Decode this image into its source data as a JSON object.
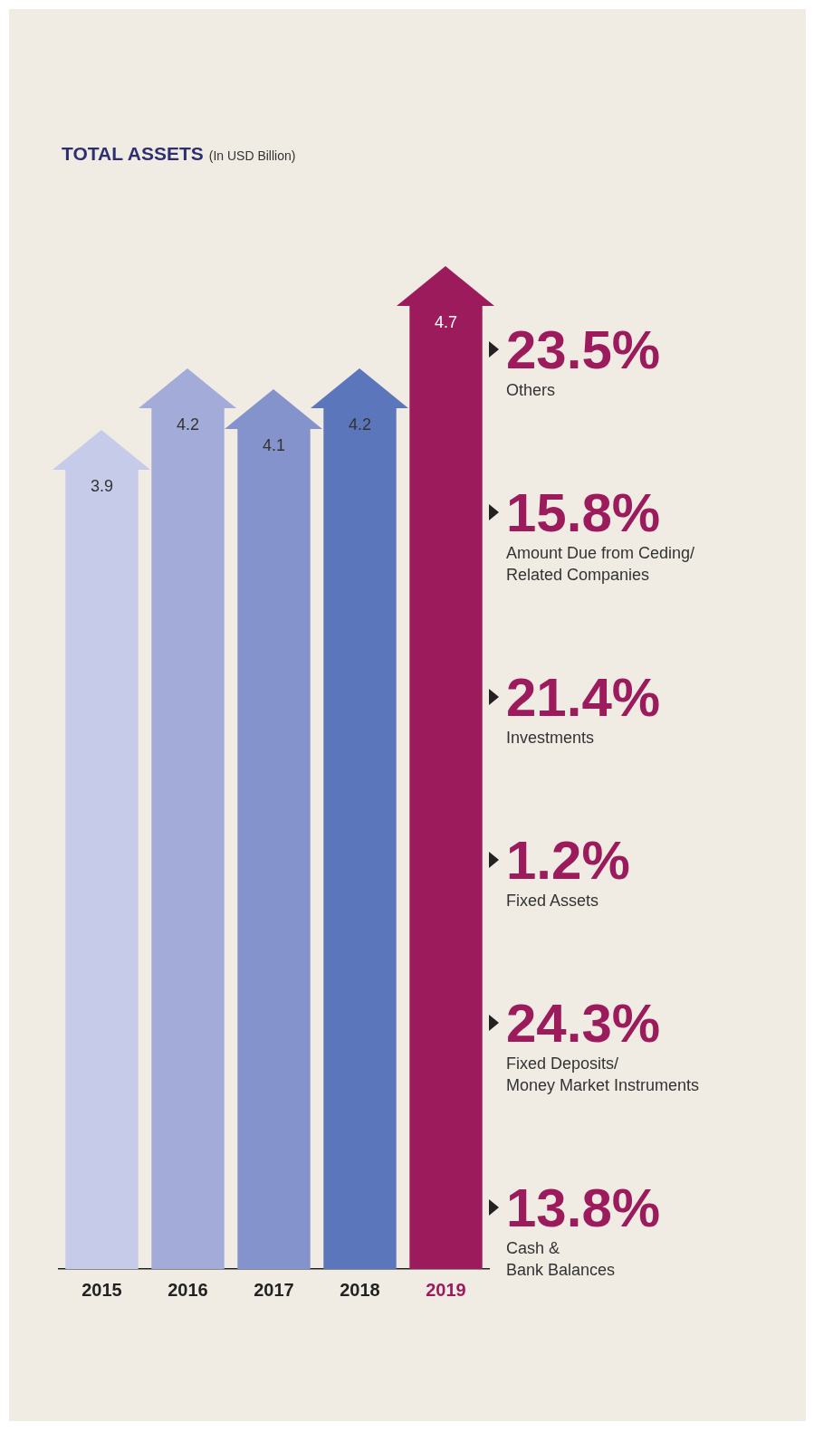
{
  "chart_data": {
    "type": "bar",
    "title": "TOTAL ASSETS",
    "subtitle": "(In USD Billion)",
    "categories": [
      "2015",
      "2016",
      "2017",
      "2018",
      "2019"
    ],
    "values": [
      3.9,
      4.2,
      4.1,
      4.2,
      4.7
    ],
    "colors": [
      "#c5cbe8",
      "#a3acd9",
      "#8593cc",
      "#5b76bb",
      "#9c1b5c"
    ],
    "data_labels": true,
    "legend": false,
    "annotations": [
      "23.5%",
      "Others",
      "15.8%",
      "Amount Due from Ceding/\nRelated Companies",
      "21.4%",
      "Investments",
      "1.2%",
      "Fixed Assets",
      "24.3%",
      "Fixed Deposits/\nMoney Market Instruments",
      "13.8%",
      "Cash &\nBank Balances"
    ]
  }
}
